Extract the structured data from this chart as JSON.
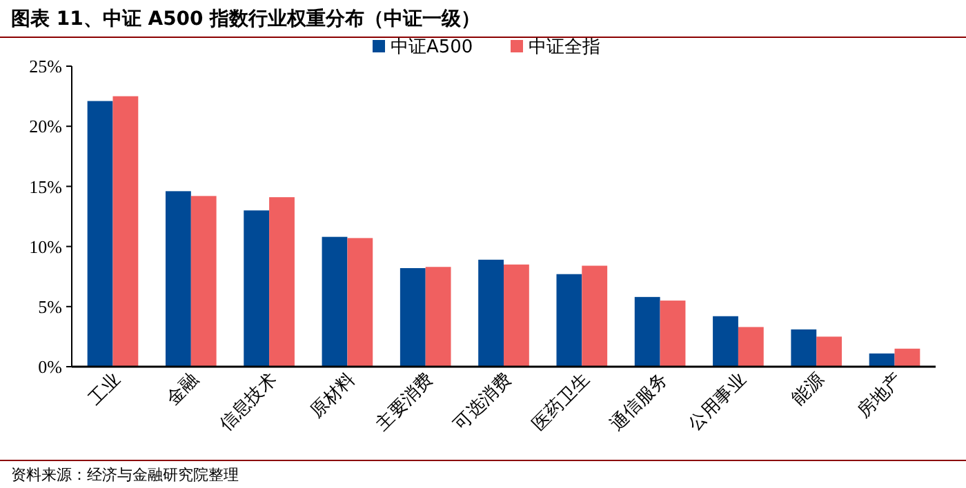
{
  "chart_data": {
    "type": "bar",
    "title": "图表 11、中证 A500 指数行业权重分布（中证一级）",
    "categories": [
      "工业",
      "金融",
      "信息技术",
      "原材料",
      "主要消费",
      "可选消费",
      "医药卫生",
      "通信服务",
      "公用事业",
      "能源",
      "房地产"
    ],
    "series": [
      {
        "name": "中证A500",
        "color": "#004a96",
        "values": [
          22.1,
          14.6,
          13.0,
          10.8,
          8.2,
          8.9,
          7.7,
          5.8,
          4.2,
          3.1,
          1.1
        ]
      },
      {
        "name": "中证全指",
        "color": "#f06060",
        "values": [
          22.5,
          14.2,
          14.1,
          10.7,
          8.3,
          8.5,
          8.4,
          5.5,
          3.3,
          2.5,
          1.5
        ]
      }
    ],
    "ylim": [
      0,
      25
    ],
    "yticks": [
      {
        "value": 0,
        "label": "0%"
      },
      {
        "value": 5,
        "label": "5%"
      },
      {
        "value": 10,
        "label": "10%"
      },
      {
        "value": 15,
        "label": "15%"
      },
      {
        "value": 20,
        "label": "20%"
      },
      {
        "value": 25,
        "label": "25%"
      }
    ],
    "legend": "top",
    "annotations": [
      "资料来源：经济与金融研究院整理"
    ]
  }
}
